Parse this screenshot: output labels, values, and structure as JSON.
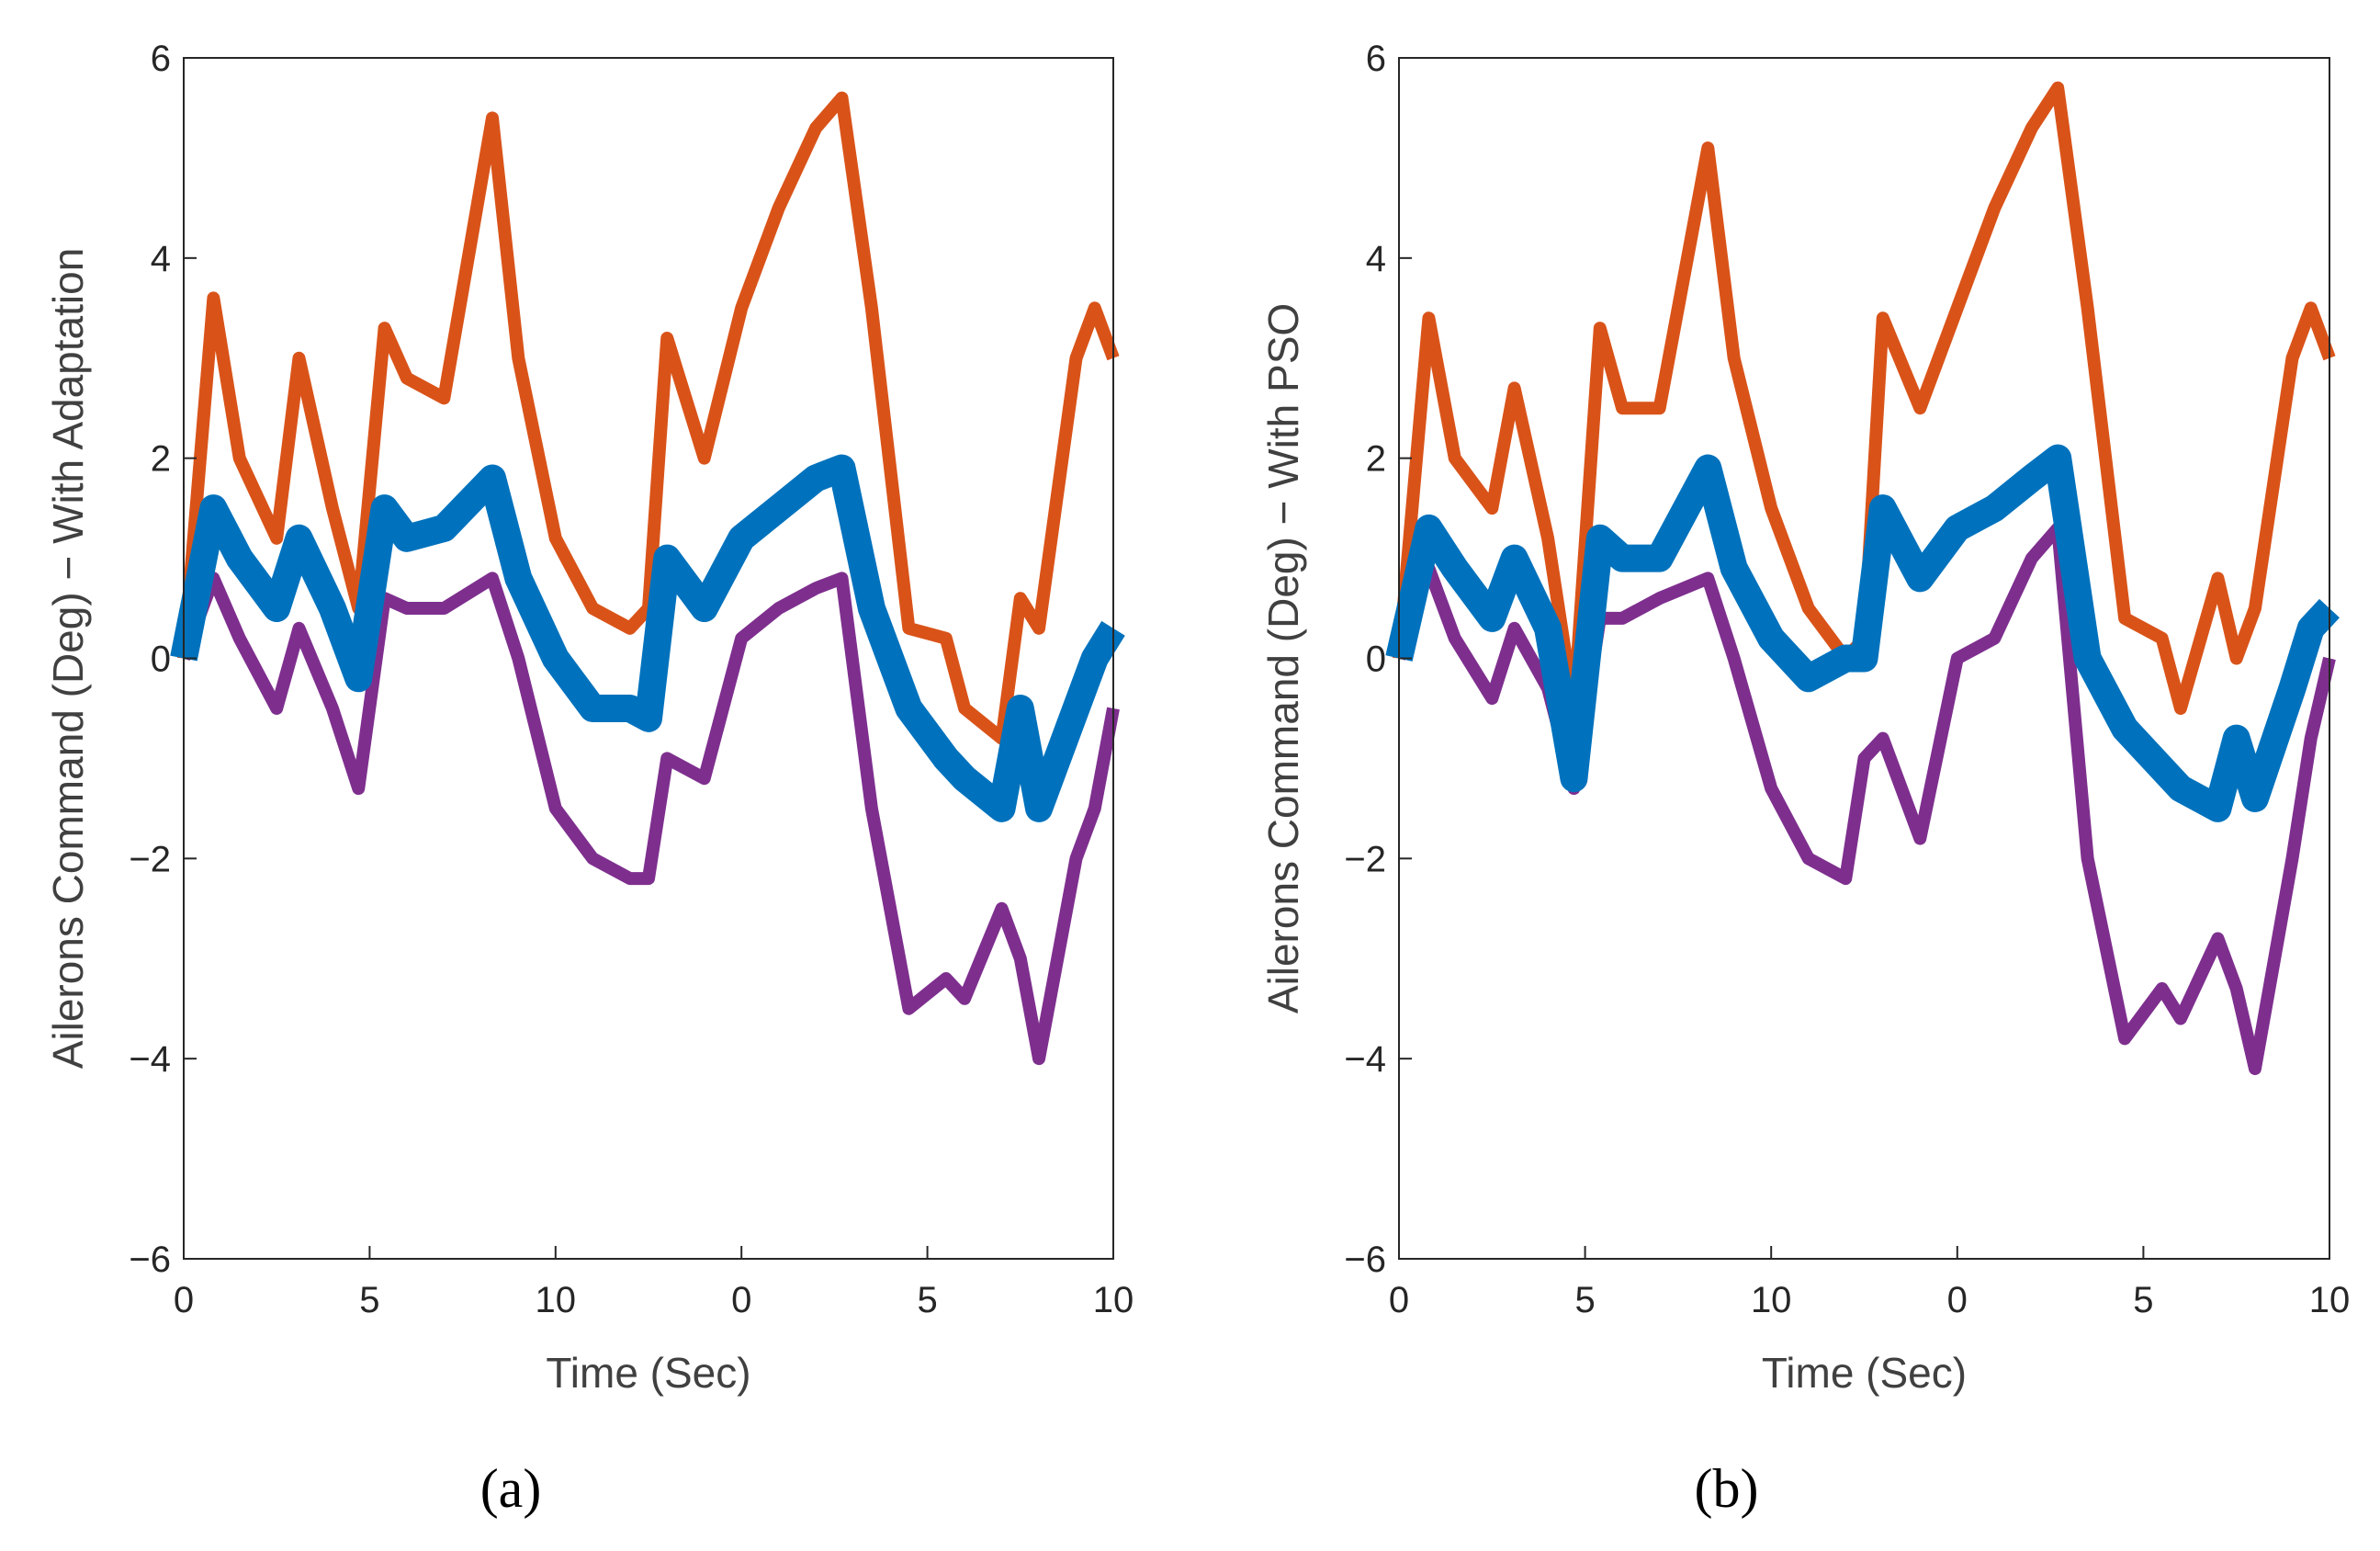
{
  "chart_data": [
    {
      "type": "line",
      "ylabel": "Ailerons Command (Deg) − With Adaptation",
      "xlabel": "Time (Sec)",
      "caption": "(a)",
      "xlim": [
        0,
        25
      ],
      "ylim": [
        -6,
        6
      ],
      "xticks": [
        0,
        5,
        10,
        {
          "value": 15,
          "label": "0"
        },
        {
          "value": 20,
          "label": "5"
        },
        {
          "value": 25,
          "label": "10"
        }
      ],
      "yticks": [
        {
          "value": -6,
          "label": "−6"
        },
        {
          "value": -4,
          "label": "−4"
        },
        {
          "value": -2,
          "label": "−2"
        },
        0,
        2,
        4,
        6
      ],
      "x": [
        0,
        0.8,
        1.5,
        2.5,
        3.1,
        4,
        4.7,
        5.4,
        6,
        7,
        8.3,
        9,
        10,
        11,
        12,
        12.5,
        13,
        14,
        15,
        16,
        17,
        17.7,
        18.5,
        19.5,
        20.5,
        21,
        22,
        22.5,
        23,
        24,
        24.5,
        25
      ],
      "series": [
        {
          "color": "#7e2f8e",
          "values": [
            0,
            0.8,
            0.2,
            -0.5,
            0.3,
            -0.5,
            -1.3,
            0.6,
            0.5,
            0.5,
            0.8,
            0,
            -1.5,
            -2,
            -2.2,
            -2.2,
            -1,
            -1.2,
            0.2,
            0.5,
            0.7,
            0.8,
            -1.5,
            -3.5,
            -3.2,
            -3.4,
            -2.5,
            -3,
            -4,
            -2,
            -1.5,
            -0.5
          ]
        },
        {
          "color": "#d95319",
          "values": [
            0,
            3.6,
            2,
            1.2,
            3,
            1.5,
            0.5,
            3.3,
            2.8,
            2.6,
            5.4,
            3,
            1.2,
            0.5,
            0.3,
            0.5,
            3.2,
            2,
            3.5,
            4.5,
            5.3,
            5.6,
            3.5,
            0.3,
            0.2,
            -0.5,
            -0.8,
            0.6,
            0.3,
            3,
            3.5,
            3
          ]
        },
        {
          "color": "#0072bd",
          "values": [
            0,
            1.5,
            1,
            0.5,
            1.2,
            0.5,
            -0.2,
            1.5,
            1.2,
            1.3,
            1.8,
            0.8,
            0,
            -0.5,
            -0.5,
            -0.6,
            1,
            0.5,
            1.2,
            1.5,
            1.8,
            1.9,
            0.5,
            -0.5,
            -1,
            -1.2,
            -1.5,
            -0.5,
            -1.5,
            -0.5,
            0,
            0.3
          ]
        }
      ]
    },
    {
      "type": "line",
      "ylabel": "Ailerons Command  (Deg) − With PSO",
      "xlabel": "Time (Sec)",
      "caption": "(b)",
      "xlim": [
        0,
        25
      ],
      "ylim": [
        -6,
        6
      ],
      "xticks": [
        0,
        5,
        10,
        {
          "value": 15,
          "label": "0"
        },
        {
          "value": 20,
          "label": "5"
        },
        {
          "value": 25,
          "label": "10"
        }
      ],
      "yticks": [
        {
          "value": -6,
          "label": "−6"
        },
        {
          "value": -4,
          "label": "−4"
        },
        {
          "value": -2,
          "label": "−2"
        },
        0,
        2,
        4,
        6
      ],
      "x": [
        0,
        0.8,
        1.5,
        2.5,
        3.1,
        4,
        4.7,
        5.4,
        6,
        7,
        8.3,
        9,
        10,
        11,
        12,
        12.5,
        13,
        14,
        15,
        16,
        17,
        17.7,
        18.5,
        19.5,
        20.5,
        21,
        22,
        22.5,
        23,
        24,
        24.5,
        25
      ],
      "series": [
        {
          "color": "#7e2f8e",
          "values": [
            0,
            0.9,
            0.2,
            -0.4,
            0.3,
            -0.3,
            -1.3,
            0.4,
            0.4,
            0.6,
            0.8,
            0,
            -1.3,
            -2,
            -2.2,
            -1,
            -0.8,
            -1.8,
            0,
            0.2,
            1,
            1.3,
            -2,
            -3.8,
            -3.3,
            -3.6,
            -2.8,
            -3.3,
            -4.1,
            -2,
            -0.8,
            0
          ]
        },
        {
          "color": "#d95319",
          "values": [
            0,
            3.4,
            2,
            1.5,
            2.7,
            1.2,
            -0.5,
            3.3,
            2.5,
            2.5,
            5.1,
            3,
            1.5,
            0.5,
            0,
            0.2,
            3.4,
            2.5,
            3.5,
            4.5,
            5.3,
            5.7,
            3.5,
            0.4,
            0.2,
            -0.5,
            0.8,
            0,
            0.5,
            3,
            3.5,
            3
          ]
        },
        {
          "color": "#0072bd",
          "values": [
            0,
            1.3,
            0.9,
            0.4,
            1,
            0.3,
            -1.2,
            1.2,
            1,
            1,
            1.9,
            0.9,
            0.2,
            -0.2,
            0,
            0,
            1.5,
            0.8,
            1.3,
            1.5,
            1.8,
            2,
            0,
            -0.7,
            -1.1,
            -1.3,
            -1.5,
            -0.8,
            -1.4,
            -0.3,
            0.3,
            0.5
          ]
        }
      ]
    }
  ]
}
